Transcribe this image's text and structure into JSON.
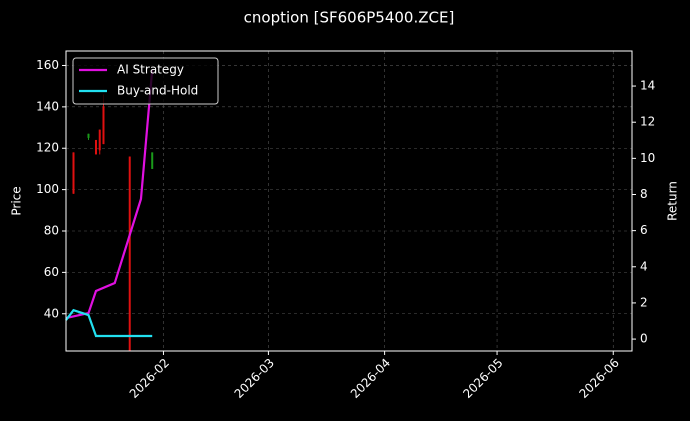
{
  "chart_data": {
    "type": "candlestick",
    "title": "cnoption [SF606P5400.ZCE]",
    "ylabel": "Price",
    "y2label": "Return",
    "xlim": [
      "2026-01-06",
      "2026-06-06"
    ],
    "xticks": [
      {
        "value": "2026-02-01",
        "label": "2026-02"
      },
      {
        "value": "2026-03-01",
        "label": "2026-03"
      },
      {
        "value": "2026-04-01",
        "label": "2026-04"
      },
      {
        "value": "2026-05-01",
        "label": "2026-05"
      },
      {
        "value": "2026-06-01",
        "label": "2026-06"
      }
    ],
    "ylim": [
      22,
      167
    ],
    "yticks": [
      40,
      60,
      80,
      100,
      120,
      140,
      160
    ],
    "y2lim": [
      -0.66,
      15.94
    ],
    "y2ticks": [
      0,
      2,
      4,
      6,
      8,
      10,
      12,
      14
    ],
    "grid": true,
    "legend": "upper left",
    "candles": {
      "x": [
        "2026-01-08",
        "2026-01-12",
        "2026-01-14",
        "2026-01-15",
        "2026-01-16",
        "2026-01-23",
        "2026-01-29"
      ],
      "open": [
        118,
        125,
        124,
        129,
        140,
        116,
        110
      ],
      "high": [
        118,
        127,
        124,
        129,
        146,
        116,
        118
      ],
      "low": [
        98,
        124,
        117,
        117,
        122,
        22,
        110
      ],
      "close": [
        98,
        127,
        117,
        119,
        122,
        22,
        118
      ],
      "up_color": "#1a9a1a",
      "down_color": "#e01010"
    },
    "series": [
      {
        "name": "AI Strategy",
        "color": "#e010e0",
        "axis": "y2",
        "x": [
          "2026-01-06",
          "2026-01-12",
          "2026-01-14",
          "2026-01-19",
          "2026-01-26",
          "2026-01-29"
        ],
        "values": [
          1.16,
          1.44,
          2.66,
          3.1,
          7.75,
          14.9
        ]
      },
      {
        "name": "Buy-and-Hold",
        "color": "#22e0f0",
        "axis": "y2",
        "x": [
          "2026-01-06",
          "2026-01-08",
          "2026-01-12",
          "2026-01-14",
          "2026-01-29"
        ],
        "values": [
          1.05,
          1.6,
          1.33,
          0.17,
          0.17
        ]
      }
    ]
  }
}
